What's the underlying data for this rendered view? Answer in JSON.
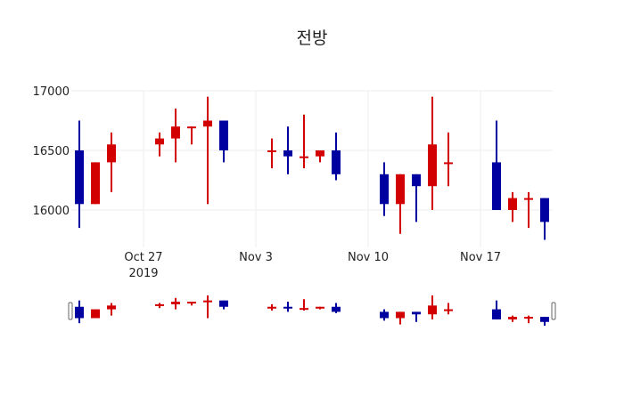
{
  "title": "전방",
  "colors": {
    "increasing": "#d20000",
    "decreasing": "#0000a0",
    "grid": "#eeeeee",
    "text": "#222222",
    "slider_handle": "#666666"
  },
  "chart_data": {
    "type": "candlestick",
    "title": "전방",
    "xlabel": "",
    "ylabel": "",
    "ylim": [
      15700,
      17000
    ],
    "yticks": [
      16000,
      16500,
      17000
    ],
    "xticks": [
      {
        "date": "2019-10-27",
        "label": "Oct 27",
        "sublabel": "2019"
      },
      {
        "date": "2019-11-03",
        "label": "Nov 3",
        "sublabel": ""
      },
      {
        "date": "2019-11-10",
        "label": "Nov 10",
        "sublabel": ""
      },
      {
        "date": "2019-11-17",
        "label": "Nov 17",
        "sublabel": ""
      }
    ],
    "xrange": [
      "2019-10-22T12:00",
      "2019-11-21T12:00"
    ],
    "grid": true,
    "legend": false,
    "rangeslider": true,
    "increasing_color": "red",
    "decreasing_color": "blue",
    "candles": [
      {
        "date": "2019-10-23",
        "open": 16500,
        "high": 16750,
        "low": 15850,
        "close": 16050
      },
      {
        "date": "2019-10-24",
        "open": 16050,
        "high": 16400,
        "low": 16050,
        "close": 16400
      },
      {
        "date": "2019-10-25",
        "open": 16400,
        "high": 16650,
        "low": 16150,
        "close": 16550
      },
      {
        "date": "2019-10-28",
        "open": 16550,
        "high": 16650,
        "low": 16450,
        "close": 16600
      },
      {
        "date": "2019-10-29",
        "open": 16600,
        "high": 16850,
        "low": 16400,
        "close": 16700
      },
      {
        "date": "2019-10-30",
        "open": 16700,
        "high": 16700,
        "low": 16550,
        "close": 16700
      },
      {
        "date": "2019-10-31",
        "open": 16700,
        "high": 16950,
        "low": 16050,
        "close": 16750
      },
      {
        "date": "2019-11-01",
        "open": 16750,
        "high": 16750,
        "low": 16400,
        "close": 16500
      },
      {
        "date": "2019-11-04",
        "open": 16500,
        "high": 16600,
        "low": 16350,
        "close": 16500
      },
      {
        "date": "2019-11-05",
        "open": 16500,
        "high": 16700,
        "low": 16300,
        "close": 16450
      },
      {
        "date": "2019-11-06",
        "open": 16450,
        "high": 16800,
        "low": 16350,
        "close": 16450
      },
      {
        "date": "2019-11-07",
        "open": 16450,
        "high": 16500,
        "low": 16400,
        "close": 16500
      },
      {
        "date": "2019-11-08",
        "open": 16500,
        "high": 16650,
        "low": 16250,
        "close": 16300
      },
      {
        "date": "2019-11-11",
        "open": 16300,
        "high": 16400,
        "low": 15950,
        "close": 16050
      },
      {
        "date": "2019-11-12",
        "open": 16050,
        "high": 16300,
        "low": 15800,
        "close": 16300
      },
      {
        "date": "2019-11-13",
        "open": 16300,
        "high": 16300,
        "low": 15900,
        "close": 16200
      },
      {
        "date": "2019-11-14",
        "open": 16200,
        "high": 16950,
        "low": 16000,
        "close": 16550
      },
      {
        "date": "2019-11-15",
        "open": 16400,
        "high": 16650,
        "low": 16200,
        "close": 16400
      },
      {
        "date": "2019-11-18",
        "open": 16400,
        "high": 16750,
        "low": 16000,
        "close": 16000
      },
      {
        "date": "2019-11-19",
        "open": 16000,
        "high": 16150,
        "low": 15900,
        "close": 16100
      },
      {
        "date": "2019-11-20",
        "open": 16100,
        "high": 16150,
        "low": 15850,
        "close": 16100
      },
      {
        "date": "2019-11-21",
        "open": 16100,
        "high": 16100,
        "low": 15750,
        "close": 15900
      }
    ]
  }
}
